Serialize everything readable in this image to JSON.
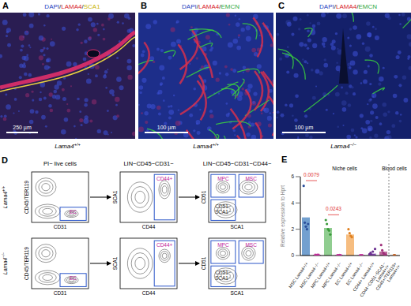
{
  "panels": [
    {
      "letter": "A",
      "title": "DAPI/LAMA4/SCA1",
      "title_colors": [
        "#1f3fbf",
        "#d81e2a",
        "#c9b400"
      ],
      "scale_bar": "250 µm",
      "genotype": "Lama4+/+"
    },
    {
      "letter": "B",
      "title": "DAPI/LAMA4/EMCN",
      "title_colors": [
        "#1f3fbf",
        "#d81e2a",
        "#2ea83a"
      ],
      "scale_bar": "100 µm",
      "genotype": "Lama4+/+"
    },
    {
      "letter": "C",
      "title": "DAPI/LAMA4/EMCN",
      "title_colors": [
        "#1f3fbf",
        "#d81e2a",
        "#2ea83a"
      ],
      "scale_bar": "100 µm",
      "genotype": "Lama4−/−"
    }
  ],
  "flow": {
    "letter": "D",
    "rows": [
      "Lama4+/+",
      "Lama4−/−"
    ],
    "columns": [
      {
        "header": "PI− live cells",
        "x_label": "CD31",
        "y_label": "CD45/TER119",
        "gates": [
          "EC"
        ]
      },
      {
        "header": "LIN−CD45−CD31−",
        "x_label": "CD44",
        "y_label": "SCA1",
        "gates": [
          "CD44+"
        ]
      },
      {
        "header": "LIN−CD45−CD31−CD44−",
        "x_label": "SCA1",
        "y_label": "CD51",
        "gates": [
          "MPC",
          "MSC",
          "CD51− SCA1−"
        ]
      }
    ]
  },
  "chart_data": {
    "letter": "E",
    "type": "bar",
    "y_label": "Relative expression to Hprt",
    "categories": [
      "MSC Lama4+/+",
      "MSC Lama4−/−",
      "MPC Lama4+/+",
      "MPC Lama4−/−",
      "EC Lama4+/+",
      "EC Lama4−/−",
      "CD44+ Lama4+/+",
      "CD44−CD51−SCA1− Lama4+/+",
      "CD45+/TER119+ Lama4+/+"
    ],
    "values": [
      2.9,
      0.05,
      2.1,
      0.03,
      1.6,
      0.02,
      0.15,
      0.3,
      0.02
    ],
    "points": [
      [
        5.3,
        2.5,
        2.2,
        2.0,
        2.4
      ],
      [
        0.05,
        0.04,
        0.06,
        0.05
      ],
      [
        2.7,
        2.4,
        2.0,
        1.9,
        1.6
      ],
      [
        0.03,
        0.02,
        0.04,
        0.03
      ],
      [
        2.0,
        1.7,
        1.5,
        1.4
      ],
      [
        0.02,
        0.02,
        0.03
      ],
      [
        0.1,
        0.2,
        0.05,
        0.3,
        0.02,
        0.5
      ],
      [
        0.8,
        0.4,
        0.2,
        0.1,
        0.05
      ],
      [
        0.02,
        0.02
      ]
    ],
    "colors": [
      "#5b8fc7",
      "#c24f9a",
      "#7cc47c",
      "#c24f9a",
      "#f4b26a",
      "#c24f9a",
      "#9b6bc0",
      "#b0508a",
      "#e0a070"
    ],
    "point_colors": [
      "#2b4f9b",
      "#c0309a",
      "#3a9a3a",
      "#c0309a",
      "#e08020",
      "#c0309a",
      "#6a2f90",
      "#a0307a",
      "#c06020"
    ],
    "ylim": [
      0,
      6
    ],
    "yticks": [
      0,
      2,
      4,
      6
    ],
    "comparisons": [
      {
        "pair": [
          0,
          1
        ],
        "label": "0.0079"
      },
      {
        "pair": [
          2,
          3
        ],
        "label": "0.0243"
      }
    ],
    "comparison_color": "#e03030",
    "groups": [
      {
        "label": "Niche cells",
        "count": 8
      },
      {
        "label": "Blood cells",
        "count": 1
      }
    ]
  }
}
